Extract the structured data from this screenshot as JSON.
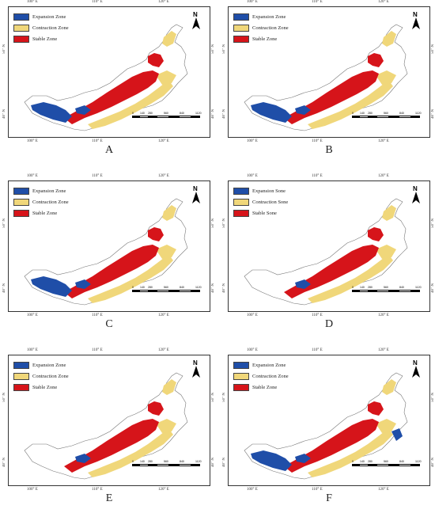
{
  "colors": {
    "expansion": "#1f4ea8",
    "contraction": "#f0d77a",
    "stable": "#d6141a",
    "outline": "#777777"
  },
  "legend_sets": {
    "zone": [
      "Expansion Zone",
      "Contraction Zone",
      "Stable Zone"
    ],
    "sone": [
      "Expansion Sone",
      "Contraction Sone",
      "Stable Sone"
    ]
  },
  "axis_labels": {
    "lon_top": [
      "100° E",
      "110° E",
      "120° E"
    ],
    "lon_bottom": [
      "100° E",
      "110° E",
      "120° E"
    ],
    "lat": [
      "50° N",
      "40° N"
    ]
  },
  "scale_labels": [
    "0",
    "140",
    "280",
    "560",
    "840",
    "1120"
  ],
  "north_label": "N",
  "panels": [
    {
      "label": "A",
      "legend": [
        "Expansion Zone",
        "Contraction Zone",
        "Stable Zone"
      ]
    },
    {
      "label": "B",
      "legend": [
        "Expansion Zone",
        "Contraction Zone",
        "Stable Zone"
      ]
    },
    {
      "label": "C",
      "legend": [
        "Expansion Zone",
        "Contraction Zone",
        "Stable Zone"
      ]
    },
    {
      "label": "D",
      "legend": [
        "Expansion Sone",
        "Contraction Sone",
        "Stable Sone"
      ]
    },
    {
      "label": "E",
      "legend": [
        "Expansion Zone",
        "Contraction Zone",
        "Stable Zone"
      ]
    },
    {
      "label": "F",
      "legend": [
        "Expansion Zone",
        "Contraction Zone",
        "Stable Zone"
      ]
    }
  ]
}
